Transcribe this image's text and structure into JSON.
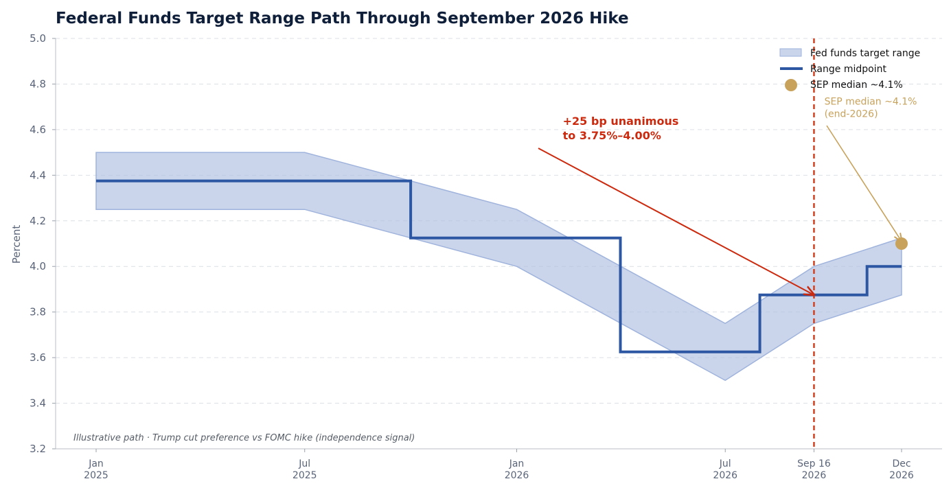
{
  "chart_data": {
    "type": "area",
    "title": "Federal Funds Target Range Path Through September 2026 Hike",
    "xlabel": "",
    "ylabel": "Percent",
    "ylim": [
      3.2,
      5.0
    ],
    "yticks": [
      "3.2",
      "3.4",
      "3.6",
      "3.8",
      "4.0",
      "4.2",
      "4.4",
      "4.6",
      "4.8",
      "5.0"
    ],
    "grid": "horizontal dashed",
    "legend_position": "top-right",
    "x_ticks": [
      {
        "date": "2025-01-01",
        "line1": "Jan",
        "line2": "2025"
      },
      {
        "date": "2025-07-01",
        "line1": "Jul",
        "line2": "2025"
      },
      {
        "date": "2026-01-01",
        "line1": "Jan",
        "line2": "2026"
      },
      {
        "date": "2026-07-01",
        "line1": "Jul",
        "line2": "2026"
      },
      {
        "date": "2026-09-16",
        "line1": "Sep 16",
        "line2": "2026"
      },
      {
        "date": "2026-12-01",
        "line1": "Dec",
        "line2": "2026"
      }
    ],
    "series": [
      {
        "name": "Fed funds target range",
        "type": "band",
        "color": "#aebfe0",
        "points": [
          {
            "date": "2025-01-01",
            "low": 4.25,
            "high": 4.5
          },
          {
            "date": "2025-07-01",
            "low": 4.25,
            "high": 4.5
          },
          {
            "date": "2025-10-01",
            "low": 4.125,
            "high": 4.375
          },
          {
            "date": "2026-01-01",
            "low": 4.0,
            "high": 4.25
          },
          {
            "date": "2026-07-01",
            "low": 3.5,
            "high": 3.75
          },
          {
            "date": "2026-09-16",
            "low": 3.75,
            "high": 4.0
          },
          {
            "date": "2026-12-01",
            "low": 3.875,
            "high": 4.125
          }
        ]
      },
      {
        "name": "Range midpoint",
        "type": "step",
        "color": "#2d57a3",
        "points": [
          {
            "date": "2025-01-01",
            "y": 4.375
          },
          {
            "date": "2025-10-01",
            "y": 4.125
          },
          {
            "date": "2026-04-01",
            "y": 3.625
          },
          {
            "date": "2026-07-31",
            "y": 3.875
          },
          {
            "date": "2026-11-01",
            "y": 4.0
          },
          {
            "date": "2026-12-01",
            "y": 4.0
          }
        ]
      },
      {
        "name": "SEP median ~4.1%",
        "type": "point",
        "color": "#c8a25a",
        "points": [
          {
            "date": "2026-12-01",
            "y": 4.1
          }
        ]
      }
    ],
    "vertical_line": {
      "date": "2026-09-16",
      "color": "#d2401f",
      "style": "dashed"
    },
    "annotations": [
      {
        "line1": "+25 bp unanimous",
        "line2": "to 3.75%–4.00%",
        "color": "#cc2a0e",
        "text_at": {
          "date": "2026-02-10",
          "y": 4.62
        },
        "arrow_to": {
          "date": "2026-09-16",
          "y": 3.875
        }
      },
      {
        "line1": "SEP median ~4.1%",
        "line2": "(end-2026)",
        "color": "#c8a25a",
        "text_at": {
          "date": "2026-09-25",
          "y": 4.71
        },
        "arrow_to": {
          "date": "2026-12-01",
          "y": 4.11
        }
      }
    ],
    "note": "Illustrative path · Trump cut preference vs FOMC hike (independence signal)"
  }
}
